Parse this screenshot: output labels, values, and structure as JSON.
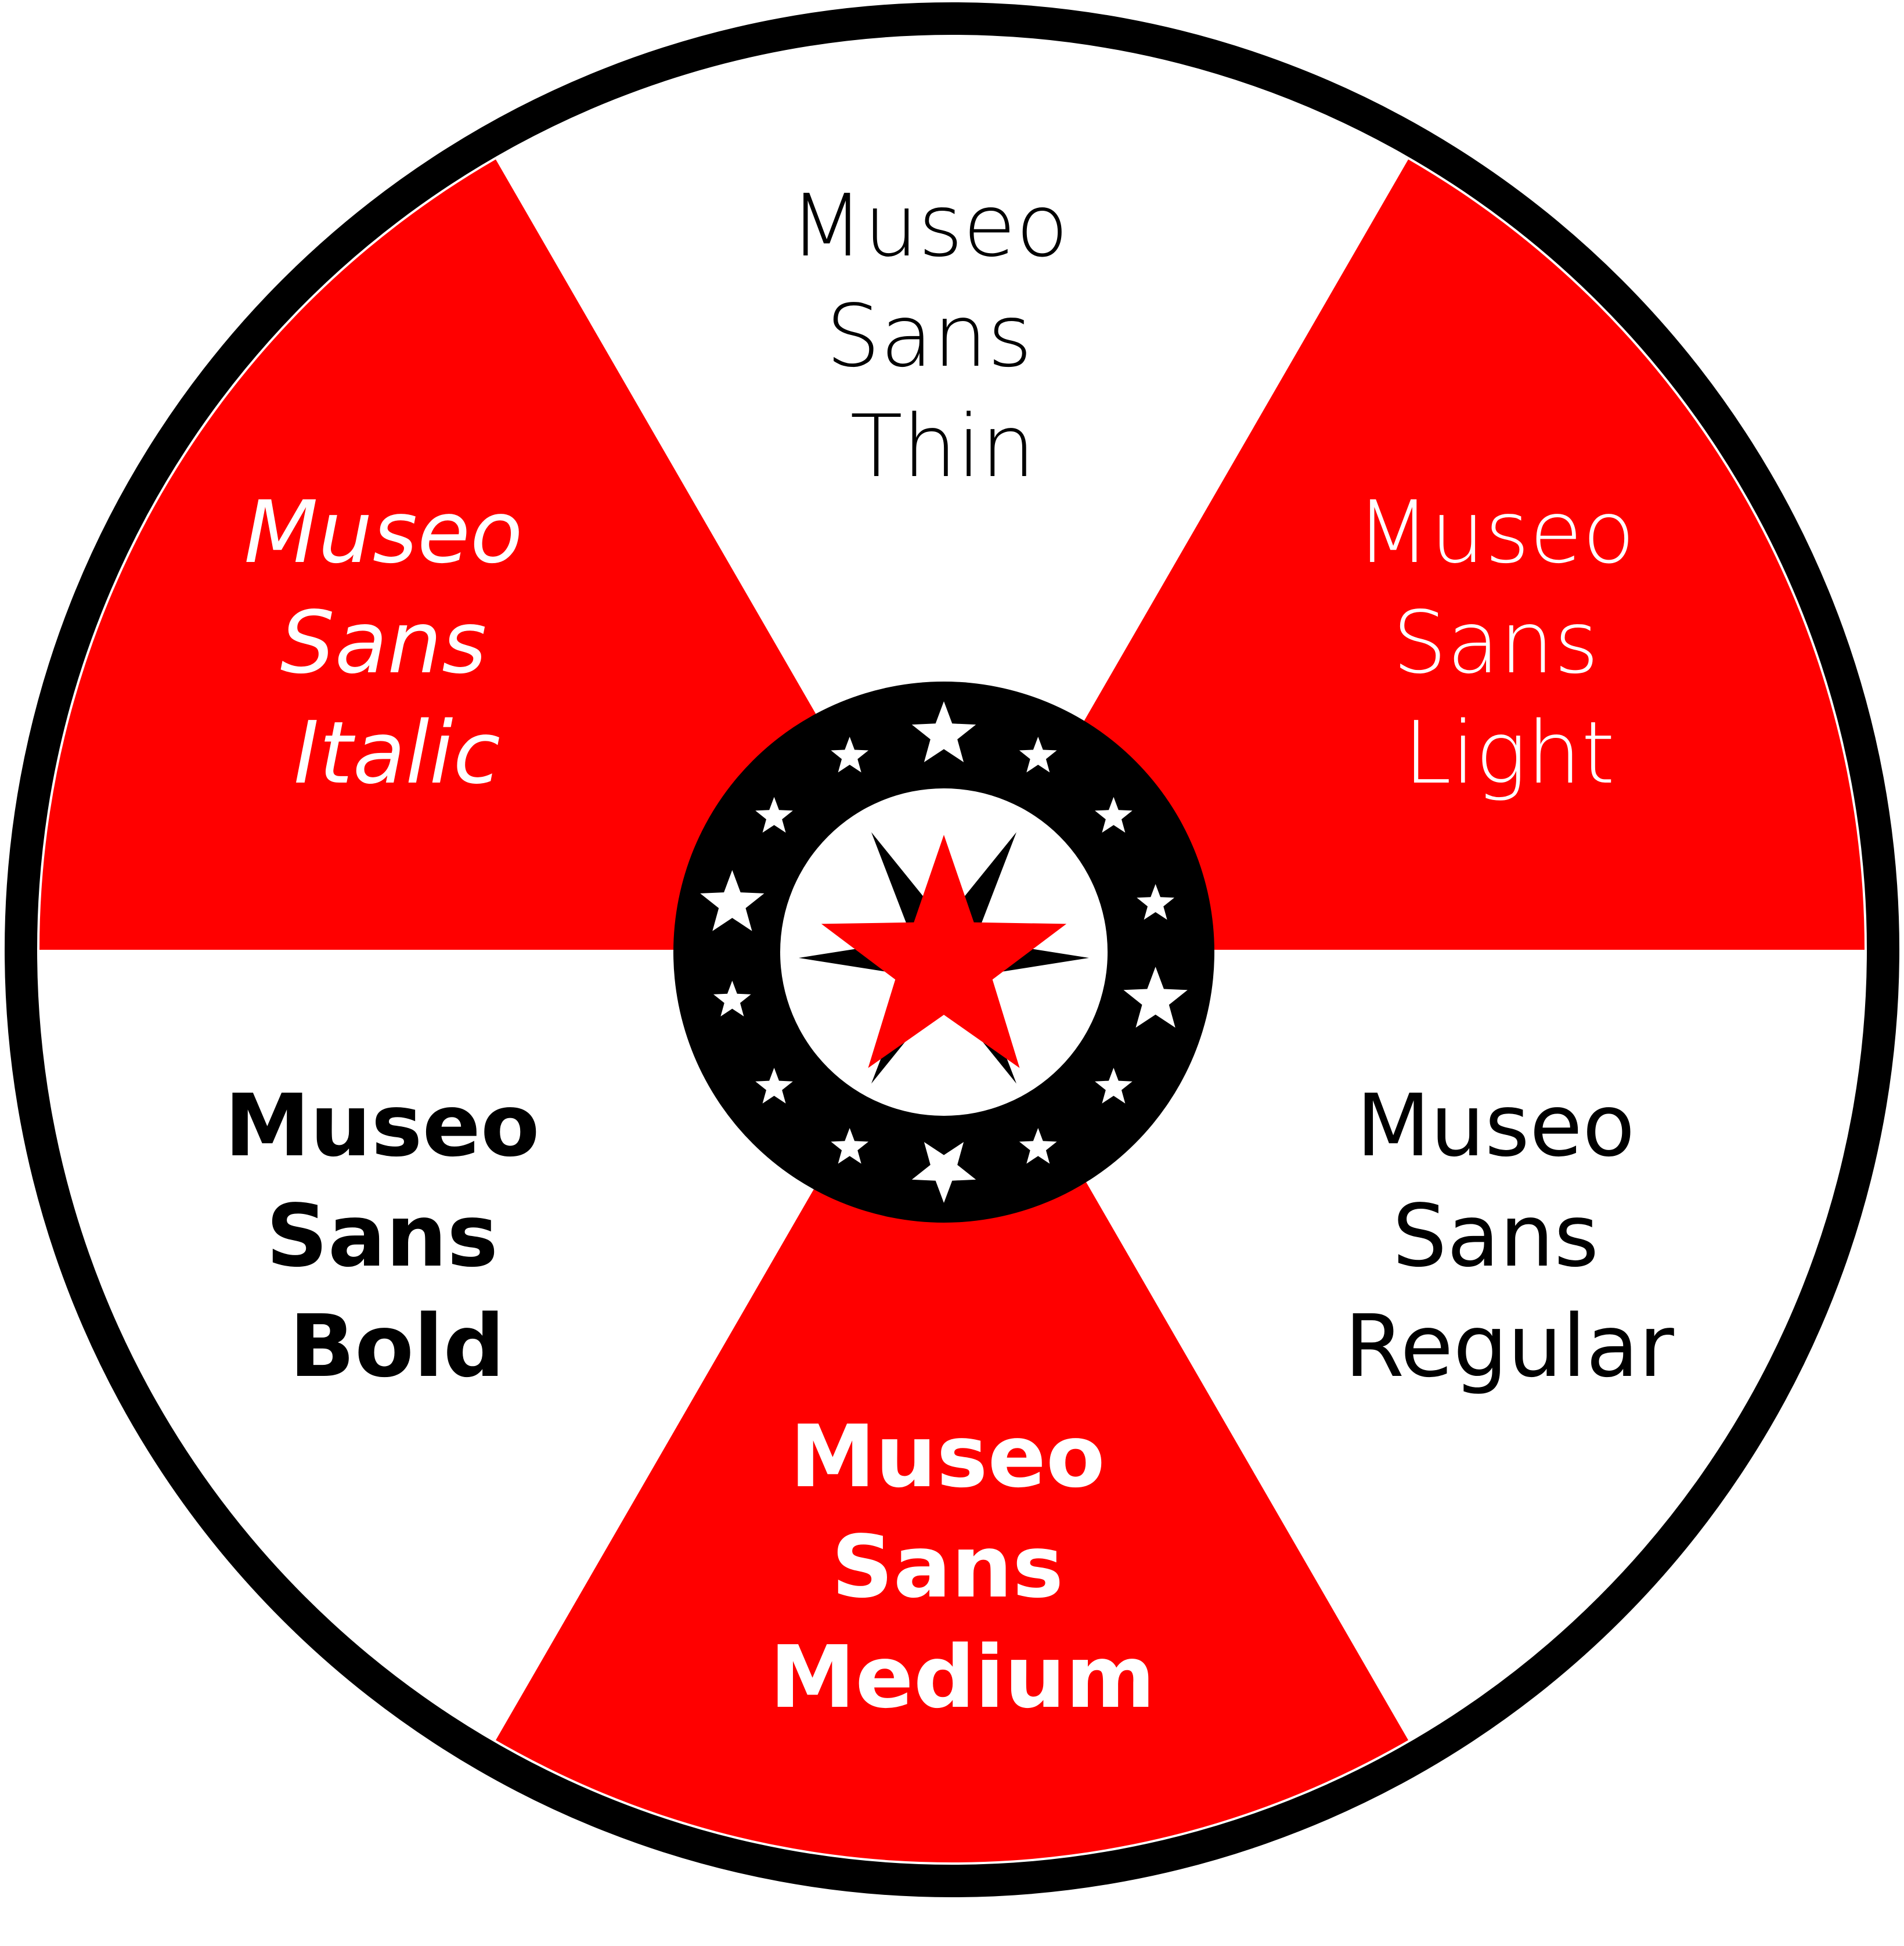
{
  "colors": {
    "red": "#ff0000",
    "white": "#ffffff",
    "black": "#000000"
  },
  "wheel": {
    "segments": [
      {
        "id": "thin",
        "fill": "red_no",
        "color": "#ffffff",
        "label_color": "#000000",
        "weight": "thin",
        "italic": false,
        "lines": [
          "Museo",
          "Sans",
          "Thin"
        ]
      },
      {
        "id": "light",
        "color": "#ff0000",
        "label_color": "#ffffff",
        "weight": "light",
        "italic": false,
        "lines": [
          "Museo",
          "Sans",
          "Light"
        ]
      },
      {
        "id": "regular",
        "color": "#ffffff",
        "label_color": "#000000",
        "weight": "regular",
        "italic": false,
        "lines": [
          "Museo",
          "Sans",
          "Regular"
        ]
      },
      {
        "id": "medium",
        "color": "#ff0000",
        "label_color": "#ffffff",
        "weight": "medium",
        "italic": false,
        "lines": [
          "Museo",
          "Sans",
          "Medium"
        ]
      },
      {
        "id": "bold",
        "color": "#ffffff",
        "label_color": "#000000",
        "weight": "bold",
        "italic": false,
        "lines": [
          "Museo",
          "Sans",
          "Bold"
        ]
      },
      {
        "id": "italic",
        "color": "#ff0000",
        "label_color": "#ffffff",
        "weight": "regular",
        "italic": true,
        "lines": [
          "Museo",
          "Sans",
          "Italic"
        ]
      }
    ],
    "hub": {
      "ring_color": "#000000",
      "inner_color": "#ffffff",
      "ring_star_count": 14,
      "center_star_icons": [
        "compass-star-icon",
        "red-star-icon"
      ]
    }
  }
}
